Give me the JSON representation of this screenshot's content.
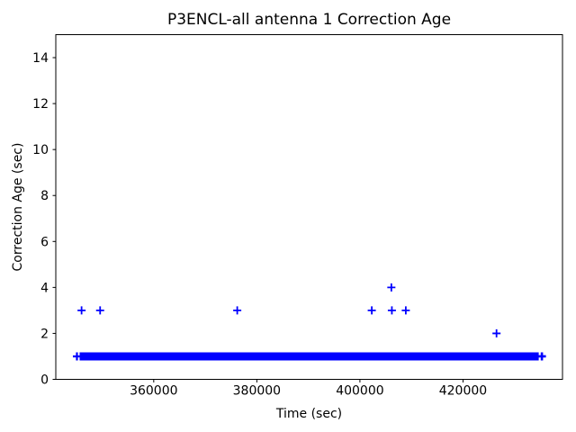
{
  "chart_data": {
    "type": "scatter",
    "title": "P3ENCL-all antenna 1 Correction Age",
    "xlabel": "Time (sec)",
    "ylabel": "Correction Age (sec)",
    "xlim": [
      341000,
      439300
    ],
    "ylim": [
      0,
      15
    ],
    "xticks": [
      360000,
      380000,
      400000,
      420000
    ],
    "xtick_labels": [
      "360000",
      "380000",
      "400000",
      "420000"
    ],
    "yticks": [
      0,
      2,
      4,
      6,
      8,
      10,
      12,
      14
    ],
    "ytick_labels": [
      "0",
      "2",
      "4",
      "6",
      "8",
      "10",
      "12",
      "14"
    ],
    "grid": false,
    "legend_position": "none",
    "marker": "plus",
    "marker_color": "#0000ff",
    "axis_color": "#000000",
    "background_color": "#ffffff",
    "series": [
      {
        "name": "correction-age-outliers",
        "points": [
          [
            346000,
            3
          ],
          [
            349600,
            3
          ],
          [
            376200,
            3
          ],
          [
            402300,
            3
          ],
          [
            406100,
            4
          ],
          [
            406200,
            3
          ],
          [
            408900,
            3
          ],
          [
            426500,
            2
          ]
        ]
      }
    ],
    "dense_band": {
      "y": 1,
      "t_start": 345100,
      "t_end": 435300
    }
  }
}
